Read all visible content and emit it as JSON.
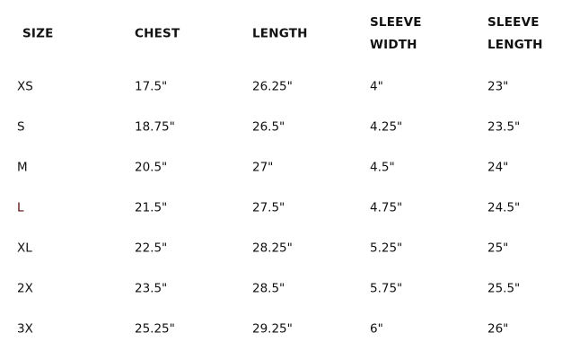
{
  "headers": [
    "SIZE",
    "CHEST",
    "LENGTH",
    [
      "SLEEVE",
      "WIDTH"
    ],
    [
      "SLEEVE",
      "LENGTH"
    ]
  ],
  "rows": [
    [
      "XS",
      "17.5\"",
      "26.25\"",
      "4\"",
      "23\""
    ],
    [
      "S",
      "18.75\"",
      "26.5\"",
      "4.25\"",
      "23.5\""
    ],
    [
      "M",
      "20.5\"",
      "27\"",
      "4.5\"",
      "24\""
    ],
    [
      "L",
      "21.5\"",
      "27.5\"",
      "4.75\"",
      "24.5\""
    ],
    [
      "XL",
      "22.5\"",
      "28.25\"",
      "5.25\"",
      "25\""
    ],
    [
      "2X",
      "23.5\"",
      "28.5\"",
      "5.75\"",
      "25.5\""
    ],
    [
      "3X",
      "25.25\"",
      "29.25\"",
      "6\"",
      "26\""
    ]
  ],
  "colors": {
    "text": "#111111",
    "highlight_size_L": "#5a0a0a"
  }
}
